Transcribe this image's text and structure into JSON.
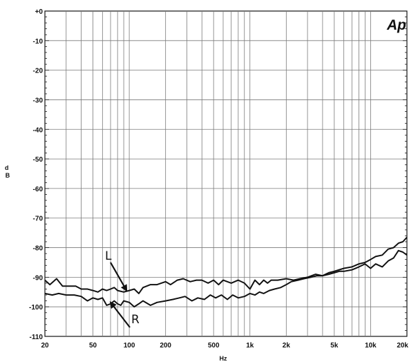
{
  "chart_data": {
    "type": "line",
    "title": "",
    "xlabel": "Hz",
    "ylabel": "d\nB",
    "x_scale": "log",
    "xlim": [
      20,
      20000
    ],
    "ylim": [
      -110,
      0
    ],
    "grid": true,
    "legend": "none",
    "logo": "Ap",
    "x_ticks": [
      {
        "value": 20,
        "label": "20"
      },
      {
        "value": 50,
        "label": "50"
      },
      {
        "value": 100,
        "label": "100"
      },
      {
        "value": 200,
        "label": "200"
      },
      {
        "value": 500,
        "label": "500"
      },
      {
        "value": 1000,
        "label": "1k"
      },
      {
        "value": 2000,
        "label": "2k"
      },
      {
        "value": 5000,
        "label": "5k"
      },
      {
        "value": 10000,
        "label": "10k"
      },
      {
        "value": 20000,
        "label": "20k"
      }
    ],
    "y_ticks": [
      {
        "value": 0,
        "label": "+0"
      },
      {
        "value": -10,
        "label": "-10"
      },
      {
        "value": -20,
        "label": "-20"
      },
      {
        "value": -30,
        "label": "-30"
      },
      {
        "value": -40,
        "label": "-40"
      },
      {
        "value": -50,
        "label": "-50"
      },
      {
        "value": -60,
        "label": "-60"
      },
      {
        "value": -70,
        "label": "-70"
      },
      {
        "value": -80,
        "label": "-80"
      },
      {
        "value": -90,
        "label": "-90"
      },
      {
        "value": -100,
        "label": "-100"
      },
      {
        "value": -110,
        "label": "-110"
      }
    ],
    "series": [
      {
        "name": "L",
        "color": "#111111",
        "points": [
          [
            20,
            -91
          ],
          [
            22,
            -92.5
          ],
          [
            25,
            -90.5
          ],
          [
            28,
            -93
          ],
          [
            32,
            -93
          ],
          [
            36,
            -93
          ],
          [
            40,
            -94
          ],
          [
            45,
            -94
          ],
          [
            50,
            -94.5
          ],
          [
            55,
            -95
          ],
          [
            60,
            -94
          ],
          [
            65,
            -94.5
          ],
          [
            70,
            -94
          ],
          [
            75,
            -93.5
          ],
          [
            80,
            -94.5
          ],
          [
            90,
            -95
          ],
          [
            100,
            -94.5
          ],
          [
            110,
            -94
          ],
          [
            120,
            -95.5
          ],
          [
            130,
            -93.5
          ],
          [
            150,
            -92.5
          ],
          [
            170,
            -92.5
          ],
          [
            200,
            -91.5
          ],
          [
            220,
            -92.5
          ],
          [
            250,
            -91
          ],
          [
            280,
            -90.5
          ],
          [
            320,
            -91.5
          ],
          [
            360,
            -91
          ],
          [
            400,
            -91
          ],
          [
            450,
            -92
          ],
          [
            500,
            -91
          ],
          [
            550,
            -92.5
          ],
          [
            600,
            -91
          ],
          [
            700,
            -92
          ],
          [
            800,
            -91
          ],
          [
            900,
            -92
          ],
          [
            1000,
            -94
          ],
          [
            1100,
            -91
          ],
          [
            1200,
            -92.5
          ],
          [
            1300,
            -91
          ],
          [
            1400,
            -92
          ],
          [
            1500,
            -91
          ],
          [
            1700,
            -91
          ],
          [
            2000,
            -90.5
          ],
          [
            2300,
            -91
          ],
          [
            2600,
            -90.5
          ],
          [
            3000,
            -90
          ],
          [
            3500,
            -89
          ],
          [
            4000,
            -89.5
          ],
          [
            4500,
            -88.5
          ],
          [
            5000,
            -88
          ],
          [
            6000,
            -87
          ],
          [
            7000,
            -86.5
          ],
          [
            8000,
            -85.5
          ],
          [
            9000,
            -85
          ],
          [
            10000,
            -84
          ],
          [
            11000,
            -83
          ],
          [
            12500,
            -82.5
          ],
          [
            14000,
            -80.5
          ],
          [
            15500,
            -80
          ],
          [
            17000,
            -78.5
          ],
          [
            18500,
            -78
          ],
          [
            20000,
            -76.5
          ]
        ]
      },
      {
        "name": "R",
        "color": "#111111",
        "points": [
          [
            20,
            -95.5
          ],
          [
            23,
            -96
          ],
          [
            26,
            -95.5
          ],
          [
            30,
            -96
          ],
          [
            35,
            -96
          ],
          [
            40,
            -96.5
          ],
          [
            45,
            -98
          ],
          [
            50,
            -97
          ],
          [
            55,
            -97.5
          ],
          [
            60,
            -97
          ],
          [
            65,
            -99.5
          ],
          [
            70,
            -99
          ],
          [
            75,
            -98
          ],
          [
            80,
            -99
          ],
          [
            85,
            -99.5
          ],
          [
            90,
            -98
          ],
          [
            100,
            -98.5
          ],
          [
            110,
            -100
          ],
          [
            120,
            -99
          ],
          [
            130,
            -98
          ],
          [
            150,
            -99.5
          ],
          [
            170,
            -98.5
          ],
          [
            200,
            -98
          ],
          [
            230,
            -97.5
          ],
          [
            260,
            -97
          ],
          [
            290,
            -96.5
          ],
          [
            330,
            -98
          ],
          [
            370,
            -97
          ],
          [
            420,
            -97.5
          ],
          [
            470,
            -96
          ],
          [
            520,
            -97
          ],
          [
            580,
            -96
          ],
          [
            650,
            -97.5
          ],
          [
            720,
            -96
          ],
          [
            800,
            -97
          ],
          [
            900,
            -96.5
          ],
          [
            1000,
            -95.5
          ],
          [
            1100,
            -96
          ],
          [
            1200,
            -95
          ],
          [
            1300,
            -95.5
          ],
          [
            1450,
            -94.5
          ],
          [
            1600,
            -94
          ],
          [
            1800,
            -93.5
          ],
          [
            2000,
            -92.5
          ],
          [
            2200,
            -91.5
          ],
          [
            2500,
            -91
          ],
          [
            2800,
            -90.5
          ],
          [
            3200,
            -90
          ],
          [
            3600,
            -89.5
          ],
          [
            4000,
            -89.5
          ],
          [
            4500,
            -89
          ],
          [
            5000,
            -88.5
          ],
          [
            5500,
            -88
          ],
          [
            6000,
            -88
          ],
          [
            7000,
            -87.5
          ],
          [
            8000,
            -86.5
          ],
          [
            9000,
            -85.5
          ],
          [
            10000,
            -87
          ],
          [
            11000,
            -85.5
          ],
          [
            12500,
            -86.5
          ],
          [
            14000,
            -84.5
          ],
          [
            15500,
            -83.5
          ],
          [
            17000,
            -81
          ],
          [
            18500,
            -81.5
          ],
          [
            20000,
            -82.5
          ]
        ]
      }
    ],
    "annotations": [
      {
        "text": "L",
        "series": "L",
        "x": 95,
        "y": -94.5
      },
      {
        "text": "R",
        "series": "R",
        "x": 70,
        "y": -98.5
      }
    ]
  }
}
